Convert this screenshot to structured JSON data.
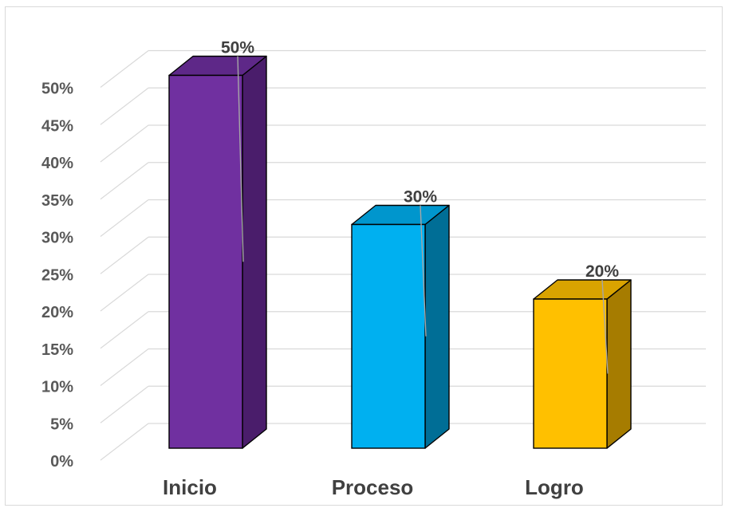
{
  "chart_data": {
    "type": "bar",
    "style": "3d-column",
    "categories": [
      "Inicio",
      "Proceso",
      "Logro"
    ],
    "values": [
      50,
      30,
      20
    ],
    "data_labels": [
      "50%",
      "30%",
      "20%"
    ],
    "y_ticks": [
      "0%",
      "5%",
      "10%",
      "15%",
      "20%",
      "25%",
      "30%",
      "35%",
      "40%",
      "45%",
      "50%"
    ],
    "ylim": [
      0,
      50
    ],
    "grid": true,
    "legend": "none",
    "colors": [
      {
        "front": "#7030a0",
        "side": "#4a1d6b",
        "top": "#5e2888"
      },
      {
        "front": "#00b0f0",
        "side": "#006e96",
        "top": "#0096cd"
      },
      {
        "front": "#ffc000",
        "side": "#a67c00",
        "top": "#d9a300"
      }
    ],
    "grid_color": "#d9d9d9",
    "text_color": "#404040"
  }
}
